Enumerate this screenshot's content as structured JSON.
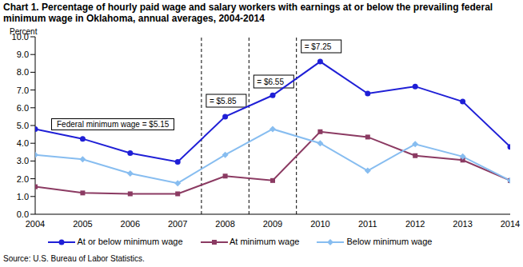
{
  "chart_data": {
    "type": "line",
    "title": "Chart 1. Percentage of hourly paid wage and salary workers with earnings at or below the prevailing federal minimum wage in Oklahoma, annual averages, 2004-2014",
    "y_label": "Percent",
    "source": "Source: U.S. Bureau of Labor Statistics.",
    "x": [
      2004,
      2005,
      2006,
      2007,
      2008,
      2009,
      2010,
      2011,
      2012,
      2013,
      2014
    ],
    "xlim": [
      2004,
      2014
    ],
    "xticks": [
      2004,
      2005,
      2006,
      2007,
      2008,
      2009,
      2010,
      2011,
      2012,
      2013,
      2014
    ],
    "ylim": [
      0,
      10
    ],
    "yticks": [
      {
        "value": 0,
        "label": "0.0"
      },
      {
        "value": 1,
        "label": "1.0"
      },
      {
        "value": 2,
        "label": "2.0"
      },
      {
        "value": 3,
        "label": "3.0"
      },
      {
        "value": 4,
        "label": "4.0"
      },
      {
        "value": 5,
        "label": "5.0"
      },
      {
        "value": 6,
        "label": "6.0"
      },
      {
        "value": 7,
        "label": "7.0"
      },
      {
        "value": 8,
        "label": "8.0"
      },
      {
        "value": 9,
        "label": "9.0"
      },
      {
        "value": 10,
        "label": "10.0"
      }
    ],
    "grid": false,
    "legend": "bottom",
    "series": [
      {
        "name": "At or below minimum wage",
        "color": "#1f1fd6",
        "marker": "circle",
        "values": [
          4.8,
          4.25,
          3.45,
          2.95,
          5.5,
          6.7,
          8.6,
          6.8,
          7.2,
          6.35,
          3.8
        ]
      },
      {
        "name": "At minimum wage",
        "color": "#8b3a62",
        "marker": "square",
        "values": [
          1.55,
          1.2,
          1.15,
          1.15,
          2.15,
          1.9,
          4.65,
          4.35,
          3.3,
          3.05,
          1.9
        ]
      },
      {
        "name": "Below minimum wage",
        "color": "#87bdf0",
        "marker": "diamond",
        "values": [
          3.35,
          3.1,
          2.3,
          1.75,
          3.35,
          4.8,
          4.0,
          2.45,
          3.95,
          3.25,
          1.9
        ]
      }
    ],
    "annotations": [
      {
        "text": "Federal minimum wage = $5.15"
      },
      {
        "x": 2007.5,
        "text": "= $5.85"
      },
      {
        "x": 2008.5,
        "text": "= $6.55"
      },
      {
        "x": 2009.5,
        "text": "= $7.25"
      }
    ]
  }
}
